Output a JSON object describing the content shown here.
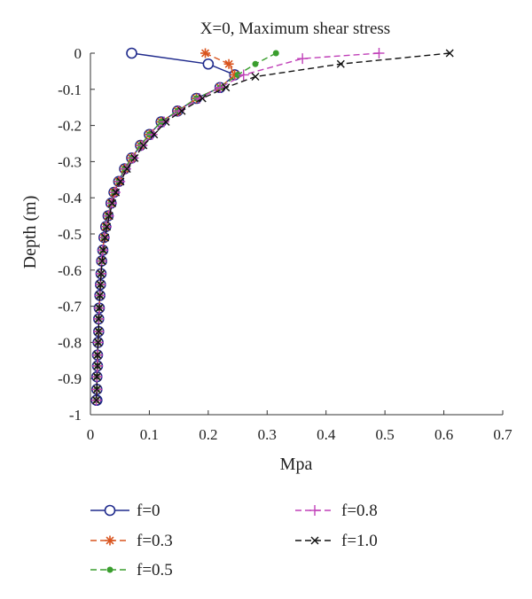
{
  "chart_data": {
    "type": "line",
    "title": "X=0, Maximum shear stress",
    "xlabel": "Mpa",
    "ylabel": "Depth (m)",
    "xlim": [
      0,
      0.7
    ],
    "ylim": [
      -1,
      0
    ],
    "xticks": [
      0,
      0.1,
      0.2,
      0.3,
      0.4,
      0.5,
      0.6,
      0.7
    ],
    "xtick_labels": [
      "0",
      "0.1",
      "0.2",
      "0.3",
      "0.4",
      "0.5",
      "0.6",
      "0.7"
    ],
    "yticks": [
      0,
      -0.1,
      -0.2,
      -0.3,
      -0.4,
      -0.5,
      -0.6,
      -0.7,
      -0.8,
      -0.9,
      -1
    ],
    "ytick_labels": [
      "0",
      "-0.1",
      "-0.2",
      "-0.3",
      "-0.4",
      "-0.5",
      "-0.6",
      "-0.7",
      "-0.8",
      "-0.9",
      "-1"
    ],
    "grid": false,
    "legend_position": "below",
    "series": [
      {
        "name": "f=0",
        "color": "#1f2a8c",
        "dash": "solid",
        "marker": "circle",
        "x": [
          0.07,
          0.2,
          0.245,
          0.22,
          0.18,
          0.148,
          0.12,
          0.1,
          0.085,
          0.07,
          0.058,
          0.048,
          0.04,
          0.035,
          0.03,
          0.026,
          0.023,
          0.021,
          0.019,
          0.018,
          0.017,
          0.016,
          0.015,
          0.014,
          0.014,
          0.013,
          0.012,
          0.012,
          0.011,
          0.011,
          0.011,
          0.01
        ],
        "y": [
          0,
          -0.03,
          -0.06,
          -0.095,
          -0.125,
          -0.16,
          -0.19,
          -0.225,
          -0.255,
          -0.29,
          -0.32,
          -0.355,
          -0.385,
          -0.415,
          -0.45,
          -0.48,
          -0.51,
          -0.545,
          -0.575,
          -0.61,
          -0.64,
          -0.67,
          -0.705,
          -0.735,
          -0.77,
          -0.8,
          -0.835,
          -0.865,
          -0.895,
          -0.93,
          -0.96,
          -0.96
        ]
      },
      {
        "name": "f=0.3",
        "color": "#d9541e",
        "dash": "dashed",
        "marker": "asterisk",
        "x": [
          0.195,
          0.235,
          0.245,
          0.22,
          0.18,
          0.148,
          0.12,
          0.1,
          0.085,
          0.07,
          0.058,
          0.048,
          0.04,
          0.035,
          0.03,
          0.026,
          0.023,
          0.021,
          0.019,
          0.018,
          0.017,
          0.016,
          0.015,
          0.014,
          0.014,
          0.013,
          0.012,
          0.012,
          0.011,
          0.011,
          0.01
        ],
        "y": [
          0,
          -0.03,
          -0.06,
          -0.095,
          -0.125,
          -0.16,
          -0.19,
          -0.225,
          -0.255,
          -0.29,
          -0.32,
          -0.355,
          -0.385,
          -0.415,
          -0.45,
          -0.48,
          -0.51,
          -0.545,
          -0.575,
          -0.61,
          -0.64,
          -0.67,
          -0.705,
          -0.735,
          -0.77,
          -0.8,
          -0.835,
          -0.865,
          -0.895,
          -0.93,
          -0.96
        ]
      },
      {
        "name": "f=0.5",
        "color": "#3a9e2e",
        "dash": "dashed",
        "marker": "dot",
        "x": [
          0.315,
          0.28,
          0.25,
          0.22,
          0.18,
          0.148,
          0.12,
          0.1,
          0.085,
          0.07,
          0.058,
          0.048,
          0.04,
          0.035,
          0.03,
          0.026,
          0.023,
          0.021,
          0.019,
          0.018,
          0.017,
          0.016,
          0.015,
          0.014,
          0.014,
          0.013,
          0.012,
          0.012,
          0.011,
          0.011,
          0.01
        ],
        "y": [
          0,
          -0.03,
          -0.06,
          -0.095,
          -0.125,
          -0.16,
          -0.19,
          -0.225,
          -0.255,
          -0.29,
          -0.32,
          -0.355,
          -0.385,
          -0.415,
          -0.45,
          -0.48,
          -0.51,
          -0.545,
          -0.575,
          -0.61,
          -0.64,
          -0.67,
          -0.705,
          -0.735,
          -0.77,
          -0.8,
          -0.835,
          -0.865,
          -0.895,
          -0.93,
          -0.96
        ]
      },
      {
        "name": "f=0.8",
        "color": "#c040b8",
        "dash": "dashed",
        "marker": "plus",
        "x": [
          0.49,
          0.36,
          0.26,
          0.22,
          0.185,
          0.15,
          0.125,
          0.105,
          0.088,
          0.073,
          0.06,
          0.05,
          0.042,
          0.036,
          0.031,
          0.027,
          0.024,
          0.021,
          0.019,
          0.018,
          0.017,
          0.016,
          0.015,
          0.014,
          0.014,
          0.013,
          0.012,
          0.012,
          0.011,
          0.011,
          0.01
        ],
        "y": [
          0,
          -0.015,
          -0.06,
          -0.095,
          -0.125,
          -0.16,
          -0.19,
          -0.225,
          -0.255,
          -0.29,
          -0.32,
          -0.355,
          -0.385,
          -0.415,
          -0.45,
          -0.48,
          -0.51,
          -0.545,
          -0.575,
          -0.61,
          -0.64,
          -0.67,
          -0.705,
          -0.735,
          -0.77,
          -0.8,
          -0.835,
          -0.865,
          -0.895,
          -0.93,
          -0.96
        ]
      },
      {
        "name": "f=1.0",
        "color": "#111111",
        "dash": "dashed",
        "marker": "cross",
        "x": [
          0.61,
          0.425,
          0.28,
          0.23,
          0.19,
          0.155,
          0.128,
          0.108,
          0.09,
          0.075,
          0.062,
          0.051,
          0.043,
          0.037,
          0.032,
          0.028,
          0.025,
          0.022,
          0.02,
          0.018,
          0.017,
          0.016,
          0.015,
          0.014,
          0.014,
          0.013,
          0.012,
          0.012,
          0.011,
          0.011,
          0.01
        ],
        "y": [
          0,
          -0.03,
          -0.065,
          -0.095,
          -0.125,
          -0.16,
          -0.19,
          -0.225,
          -0.255,
          -0.29,
          -0.32,
          -0.355,
          -0.385,
          -0.415,
          -0.45,
          -0.48,
          -0.51,
          -0.545,
          -0.575,
          -0.61,
          -0.64,
          -0.67,
          -0.705,
          -0.735,
          -0.77,
          -0.8,
          -0.835,
          -0.865,
          -0.895,
          -0.93,
          -0.96
        ]
      }
    ]
  }
}
